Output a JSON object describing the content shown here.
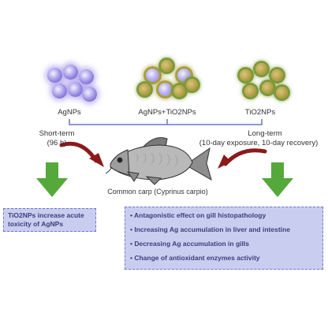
{
  "particles": {
    "left_label": "AgNPs",
    "middle_label": "AgNPs+TiO2NPs",
    "right_label": "TiO2NPs"
  },
  "exposure": {
    "short_term_line1": "Short-term",
    "short_term_line2": "(96 h)",
    "long_term_line1": "Long-term",
    "long_term_line2": "(10-day exposure, 10-day recovery)"
  },
  "fish_label": "Common carp (Cyprinus carpio)",
  "left_box": {
    "text_line1": "TiO2NPs  increase  acute",
    "text_line2": "toxicity of AgNPs"
  },
  "right_box": {
    "items": [
      "Antagonistic effect on gill histopathology",
      "Increasing Ag accumulation in liver and intestine",
      "Decreasing Ag accumulation in gills",
      "Change of antioxidant enzymes activity"
    ]
  },
  "colors": {
    "arrow_green": "#55a83a",
    "arrow_red": "#8b1a1a",
    "box_fill": "#c9cdf0",
    "bracket": "#6b74c8"
  }
}
